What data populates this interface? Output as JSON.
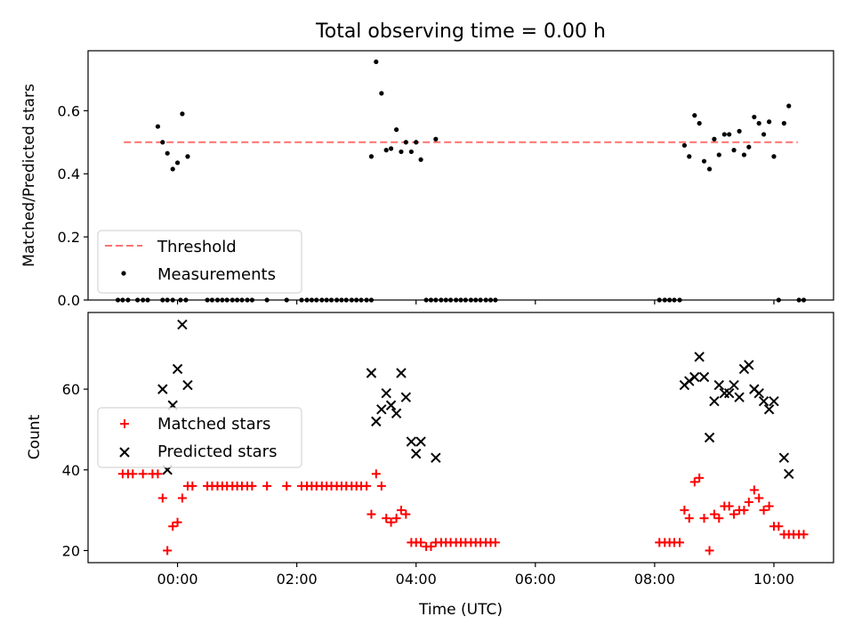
{
  "title": "Total observing time = 0.00 h",
  "colors": {
    "threshold": "#ff7070",
    "measurements": "#000000",
    "matched": "#ff0000",
    "predicted": "#000000",
    "axes": "#000000"
  },
  "chart_data": [
    {
      "type": "scatter",
      "title": "Total observing time = 0.00 h",
      "xlabel": "",
      "ylabel": "Matched/Predicted stars",
      "xlim": [
        -1.5,
        11.0
      ],
      "ylim": [
        0.0,
        0.79
      ],
      "x_ticks": [
        0,
        2,
        4,
        6,
        8,
        10
      ],
      "y_ticks": [
        0.0,
        0.2,
        0.4,
        0.6
      ],
      "y_tick_labels": [
        "0.0",
        "0.2",
        "0.4",
        "0.6"
      ],
      "legend_position": "lower-left",
      "threshold": {
        "name": "Threshold",
        "value": 0.5,
        "x": [
          -0.9,
          10.4
        ],
        "style": "dashed"
      },
      "series": [
        {
          "name": "Measurements",
          "marker": "dot",
          "x": [
            -1.0,
            -0.92,
            -0.83,
            -0.67,
            -0.58,
            -0.5,
            -0.25,
            -0.17,
            -0.08,
            0.05,
            0.14,
            0.5,
            0.58,
            0.67,
            0.75,
            0.83,
            0.92,
            1.0,
            1.08,
            1.17,
            1.25,
            1.5,
            1.83,
            2.08,
            2.17,
            2.25,
            2.33,
            2.42,
            2.5,
            2.58,
            2.67,
            2.75,
            2.83,
            2.92,
            3.0,
            3.08,
            3.17,
            3.25,
            4.17,
            4.25,
            4.33,
            4.42,
            4.5,
            4.58,
            4.67,
            4.75,
            4.83,
            4.92,
            5.0,
            5.08,
            5.17,
            5.25,
            5.33,
            8.08,
            8.17,
            8.25,
            8.33,
            8.42,
            10.08,
            10.42,
            10.5,
            -0.33,
            -0.25,
            -0.17,
            -0.08,
            0.0,
            0.08,
            0.17,
            3.25,
            3.33,
            3.42,
            3.5,
            3.58,
            3.67,
            3.75,
            3.83,
            3.92,
            4.0,
            4.08,
            4.33,
            8.5,
            8.58,
            8.67,
            8.75,
            8.83,
            8.92,
            9.0,
            9.08,
            9.17,
            9.25,
            9.33,
            9.42,
            9.5,
            9.58,
            9.67,
            9.75,
            9.83,
            9.92,
            10.0,
            10.17,
            10.25
          ],
          "y": [
            0,
            0,
            0,
            0,
            0,
            0,
            0,
            0,
            0,
            0,
            0,
            0,
            0,
            0,
            0,
            0,
            0,
            0,
            0,
            0,
            0,
            0,
            0,
            0,
            0,
            0,
            0,
            0,
            0,
            0,
            0,
            0,
            0,
            0,
            0,
            0,
            0,
            0,
            0,
            0,
            0,
            0,
            0,
            0,
            0,
            0,
            0,
            0,
            0,
            0,
            0,
            0,
            0,
            0,
            0,
            0,
            0,
            0,
            0,
            0,
            0,
            0.55,
            0.5,
            0.465,
            0.415,
            0.435,
            0.59,
            0.455,
            0.455,
            0.755,
            0.655,
            0.475,
            0.48,
            0.54,
            0.47,
            0.5,
            0.47,
            0.5,
            0.445,
            0.51,
            0.49,
            0.455,
            0.585,
            0.56,
            0.44,
            0.415,
            0.51,
            0.46,
            0.525,
            0.525,
            0.475,
            0.535,
            0.46,
            0.485,
            0.58,
            0.56,
            0.525,
            0.565,
            0.455,
            0.56,
            0.615
          ]
        }
      ]
    },
    {
      "type": "scatter",
      "xlabel": "Time (UTC)",
      "ylabel": "Count",
      "xlim": [
        -1.5,
        11.0
      ],
      "ylim": [
        17,
        79
      ],
      "x_ticks": [
        0,
        2,
        4,
        6,
        8,
        10
      ],
      "x_tick_labels": [
        "00:00",
        "02:00",
        "04:00",
        "06:00",
        "08:00",
        "10:00"
      ],
      "y_ticks": [
        20,
        40,
        60
      ],
      "y_tick_labels": [
        "20",
        "40",
        "60"
      ],
      "legend_position": "center-left",
      "series": [
        {
          "name": "Matched stars",
          "marker": "plus",
          "x": [
            -0.92,
            -0.83,
            -0.75,
            -0.58,
            -0.42,
            -0.33,
            -0.25,
            -0.17,
            -0.08,
            0.0,
            0.08,
            0.17,
            0.25,
            0.5,
            0.58,
            0.67,
            0.75,
            0.83,
            0.92,
            1.0,
            1.08,
            1.17,
            1.25,
            1.5,
            1.83,
            2.08,
            2.17,
            2.25,
            2.33,
            2.42,
            2.5,
            2.58,
            2.67,
            2.75,
            2.83,
            2.92,
            3.0,
            3.08,
            3.17,
            3.25,
            3.33,
            3.42,
            3.5,
            3.58,
            3.67,
            3.75,
            3.83,
            3.92,
            4.0,
            4.08,
            4.17,
            4.25,
            4.33,
            4.42,
            4.5,
            4.58,
            4.67,
            4.75,
            4.83,
            4.92,
            5.0,
            5.08,
            5.17,
            5.25,
            5.33,
            8.08,
            8.17,
            8.25,
            8.33,
            8.42,
            8.5,
            8.58,
            8.67,
            8.75,
            8.83,
            8.92,
            9.0,
            9.08,
            9.17,
            9.25,
            9.33,
            9.42,
            9.5,
            9.58,
            9.67,
            9.75,
            9.83,
            9.92,
            10.0,
            10.08,
            10.17,
            10.25,
            10.33,
            10.42,
            10.5
          ],
          "y": [
            39,
            39,
            39,
            39,
            39,
            39,
            33,
            20,
            26,
            27,
            33,
            36,
            36,
            36,
            36,
            36,
            36,
            36,
            36,
            36,
            36,
            36,
            36,
            36,
            36,
            36,
            36,
            36,
            36,
            36,
            36,
            36,
            36,
            36,
            36,
            36,
            36,
            36,
            36,
            29,
            39,
            36,
            28,
            27,
            28,
            30,
            29,
            22,
            22,
            22,
            21,
            21,
            22,
            22,
            22,
            22,
            22,
            22,
            22,
            22,
            22,
            22,
            22,
            22,
            22,
            22,
            22,
            22,
            22,
            22,
            30,
            28,
            37,
            38,
            28,
            20,
            29,
            28,
            31,
            31,
            29,
            30,
            30,
            32,
            35,
            33,
            30,
            31,
            26,
            26,
            24,
            24,
            24,
            24,
            24
          ]
        },
        {
          "name": "Predicted stars",
          "marker": "x",
          "x": [
            -0.25,
            -0.17,
            -0.08,
            0.0,
            0.08,
            0.17,
            3.25,
            3.33,
            3.42,
            3.5,
            3.58,
            3.67,
            3.75,
            3.83,
            3.92,
            4.0,
            4.08,
            4.33,
            8.5,
            8.58,
            8.67,
            8.75,
            8.83,
            8.92,
            9.0,
            9.08,
            9.17,
            9.25,
            9.33,
            9.42,
            9.5,
            9.58,
            9.67,
            9.75,
            9.83,
            9.92,
            10.0,
            10.17,
            10.25
          ],
          "y": [
            60,
            40,
            56,
            65,
            76,
            61,
            64,
            52,
            55,
            59,
            56,
            54,
            64,
            58,
            47,
            44,
            47,
            43,
            61,
            62,
            63,
            68,
            63,
            48,
            57,
            61,
            59,
            59,
            61,
            58,
            65,
            66,
            60,
            59,
            57,
            55,
            57,
            43,
            39
          ]
        }
      ]
    }
  ]
}
